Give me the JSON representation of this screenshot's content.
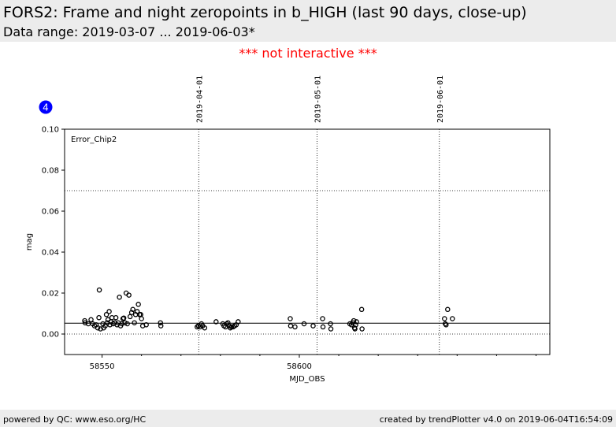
{
  "header": {
    "title": "FORS2: Frame and night zeropoints in b_HIGH (last 90 days, close-up)",
    "subtitle": "Data range: 2019-03-07 ... 2019-06-03*"
  },
  "notice": "*** not interactive ***",
  "badge": "4",
  "footer": {
    "left": "powered by QC: www.eso.org/HC",
    "right": "created by trendPlotter v4.0 on 2019-06-04T16:54:09"
  },
  "chart_data": {
    "type": "scatter",
    "annotation": "Error_Chip2",
    "xlabel": "MJD_OBS",
    "ylabel": "mag",
    "xlim": [
      58540.5,
      58663.5
    ],
    "ylim": [
      -0.01,
      0.1
    ],
    "x_ticks": [
      58550,
      58600
    ],
    "y_ticks": [
      0.0,
      0.02,
      0.04,
      0.06,
      0.08,
      0.1
    ],
    "y_tick_labels": [
      "0.00",
      "0.02",
      "0.04",
      "0.06",
      "0.08",
      "0.10"
    ],
    "date_markers": [
      {
        "x": 58574.5,
        "label": "2019-04-01"
      },
      {
        "x": 58604.5,
        "label": "2019-05-01"
      },
      {
        "x": 58635.5,
        "label": "2019-06-01"
      }
    ],
    "reference_lines": [
      {
        "y": 0.0053,
        "style": "solid"
      },
      {
        "y": 0.07,
        "style": "dotted"
      },
      {
        "y": 0.0,
        "style": "dotted"
      }
    ],
    "grid": false,
    "points": [
      [
        58545.6,
        0.0065
      ],
      [
        58545.7,
        0.0055
      ],
      [
        58546.5,
        0.005
      ],
      [
        58547.2,
        0.007
      ],
      [
        58547.6,
        0.005
      ],
      [
        58548.1,
        0.004
      ],
      [
        58548.5,
        0.0045
      ],
      [
        58548.9,
        0.003
      ],
      [
        58549.2,
        0.008
      ],
      [
        58549.3,
        0.0215
      ],
      [
        58549.6,
        0.0025
      ],
      [
        58550.2,
        0.005
      ],
      [
        58550.4,
        0.003
      ],
      [
        58550.8,
        0.004
      ],
      [
        58551.1,
        0.0095
      ],
      [
        58551.3,
        0.0055
      ],
      [
        58551.5,
        0.007
      ],
      [
        58551.8,
        0.011
      ],
      [
        58552.0,
        0.0045
      ],
      [
        58552.2,
        0.006
      ],
      [
        58552.5,
        0.008
      ],
      [
        58552.8,
        0.005
      ],
      [
        58553.2,
        0.0055
      ],
      [
        58553.5,
        0.008
      ],
      [
        58553.8,
        0.0045
      ],
      [
        58554.1,
        0.0055
      ],
      [
        58554.4,
        0.018
      ],
      [
        58554.7,
        0.004
      ],
      [
        58555.0,
        0.005
      ],
      [
        58555.3,
        0.0075
      ],
      [
        58555.5,
        0.0078
      ],
      [
        58555.8,
        0.0055
      ],
      [
        58556.1,
        0.02
      ],
      [
        58556.4,
        0.005
      ],
      [
        58556.8,
        0.019
      ],
      [
        58557.1,
        0.0085
      ],
      [
        58557.5,
        0.0105
      ],
      [
        58557.8,
        0.012
      ],
      [
        58558.2,
        0.0055
      ],
      [
        58558.5,
        0.0095
      ],
      [
        58558.9,
        0.011
      ],
      [
        58559.2,
        0.0145
      ],
      [
        58559.5,
        0.0095
      ],
      [
        58559.8,
        0.0095
      ],
      [
        58560.0,
        0.0075
      ],
      [
        58560.3,
        0.004
      ],
      [
        58561.2,
        0.0045
      ],
      [
        58564.8,
        0.0055
      ],
      [
        58564.9,
        0.004
      ],
      [
        58574.1,
        0.0035
      ],
      [
        58574.4,
        0.004
      ],
      [
        58574.8,
        0.0035
      ],
      [
        58575.2,
        0.005
      ],
      [
        58575.5,
        0.004
      ],
      [
        58576.0,
        0.003
      ],
      [
        58578.9,
        0.006
      ],
      [
        58580.6,
        0.005
      ],
      [
        58580.9,
        0.004
      ],
      [
        58581.3,
        0.0035
      ],
      [
        58581.6,
        0.005
      ],
      [
        58581.9,
        0.0055
      ],
      [
        58582.2,
        0.004
      ],
      [
        58582.5,
        0.003
      ],
      [
        58582.8,
        0.0035
      ],
      [
        58583.2,
        0.0035
      ],
      [
        58583.6,
        0.004
      ],
      [
        58584.0,
        0.0045
      ],
      [
        58584.5,
        0.006
      ],
      [
        58597.7,
        0.0075
      ],
      [
        58597.8,
        0.004
      ],
      [
        58598.9,
        0.0035
      ],
      [
        58601.2,
        0.005
      ],
      [
        58603.5,
        0.004
      ],
      [
        58605.9,
        0.0075
      ],
      [
        58606.0,
        0.0035
      ],
      [
        58607.9,
        0.005
      ],
      [
        58608.0,
        0.0025
      ],
      [
        58612.8,
        0.005
      ],
      [
        58613.2,
        0.0045
      ],
      [
        58613.5,
        0.0055
      ],
      [
        58613.8,
        0.0065
      ],
      [
        58614.0,
        0.003
      ],
      [
        58614.1,
        0.0025
      ],
      [
        58614.3,
        0.0045
      ],
      [
        58614.5,
        0.006
      ],
      [
        58615.8,
        0.012
      ],
      [
        58615.9,
        0.0025
      ],
      [
        58636.8,
        0.0075
      ],
      [
        58637.0,
        0.005
      ],
      [
        58637.2,
        0.0045
      ],
      [
        58637.6,
        0.012
      ],
      [
        58638.8,
        0.0075
      ]
    ]
  }
}
